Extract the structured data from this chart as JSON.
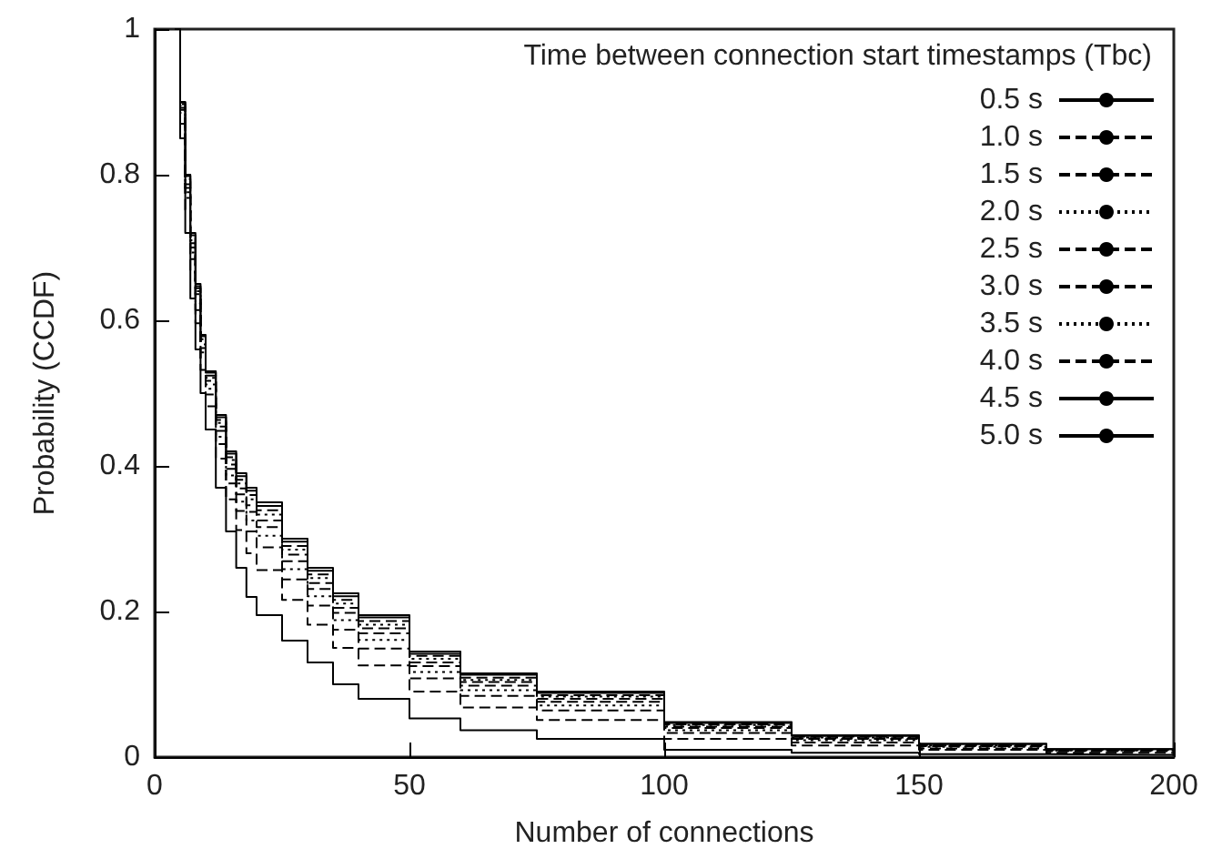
{
  "chart_data": {
    "type": "step",
    "xlabel": "Number of connections",
    "ylabel": "Probability (CCDF)",
    "legend_title": "Time between connection start timestamps (Tbc)",
    "x": [
      4,
      5,
      6,
      7,
      8,
      9,
      10,
      12,
      14,
      16,
      18,
      20,
      25,
      30,
      35,
      40,
      50,
      60,
      75,
      100,
      125,
      150,
      175,
      200
    ],
    "xlim": [
      0,
      200
    ],
    "xticks": [
      0,
      50,
      100,
      150,
      200
    ],
    "ylim": [
      0,
      1
    ],
    "yticks": [
      0,
      0.2,
      0.4,
      0.6,
      0.8,
      1
    ],
    "grid": false,
    "legend": "top right",
    "marker": "none",
    "series": [
      {
        "name": "0.5 s",
        "color": "#000000",
        "line_style": "solid",
        "values": [
          1,
          0.85,
          0.72,
          0.63,
          0.56,
          0.5,
          0.45,
          0.37,
          0.31,
          0.26,
          0.22,
          0.195,
          0.16,
          0.13,
          0.1,
          0.08,
          0.053,
          0.037,
          0.025,
          0.01,
          0.006,
          0.004,
          0.003,
          0.002
        ]
      },
      {
        "name": "1.0 s",
        "color": "#000000",
        "line_style": "dashed",
        "values": [
          1,
          0.87,
          0.752,
          0.666,
          0.596,
          0.532,
          0.482,
          0.41,
          0.354,
          0.312,
          0.28,
          0.257,
          0.216,
          0.182,
          0.15,
          0.126,
          0.09,
          0.068,
          0.051,
          0.025,
          0.016,
          0.01,
          0.006,
          0.004
        ]
      },
      {
        "name": "1.5 s",
        "color": "#000000",
        "line_style": "dashed",
        "values": [
          1,
          0.88,
          0.768,
          0.684,
          0.614,
          0.548,
          0.498,
          0.43,
          0.376,
          0.338,
          0.31,
          0.288,
          0.244,
          0.208,
          0.175,
          0.149,
          0.108,
          0.084,
          0.064,
          0.033,
          0.02,
          0.012,
          0.008,
          0.005
        ]
      },
      {
        "name": "2.0 s",
        "color": "#000000",
        "line_style": "dotted",
        "values": [
          1,
          0.885,
          0.776,
          0.693,
          0.623,
          0.556,
          0.506,
          0.44,
          0.387,
          0.351,
          0.325,
          0.304,
          0.258,
          0.221,
          0.188,
          0.161,
          0.117,
          0.092,
          0.071,
          0.037,
          0.023,
          0.014,
          0.009,
          0.006
        ]
      },
      {
        "name": "2.5 s",
        "color": "#000000",
        "line_style": "dashed",
        "values": [
          1,
          0.889,
          0.782,
          0.7,
          0.63,
          0.562,
          0.512,
          0.448,
          0.396,
          0.361,
          0.337,
          0.316,
          0.269,
          0.231,
          0.198,
          0.17,
          0.125,
          0.098,
          0.076,
          0.04,
          0.025,
          0.015,
          0.009,
          0.006
        ]
      },
      {
        "name": "3.0 s",
        "color": "#000000",
        "line_style": "dashed",
        "values": [
          1,
          0.892,
          0.787,
          0.706,
          0.636,
          0.567,
          0.517,
          0.454,
          0.402,
          0.369,
          0.346,
          0.325,
          0.278,
          0.239,
          0.205,
          0.177,
          0.13,
          0.103,
          0.08,
          0.042,
          0.026,
          0.016,
          0.01,
          0.006
        ]
      },
      {
        "name": "3.5 s",
        "color": "#000000",
        "line_style": "dotted",
        "values": [
          1,
          0.895,
          0.791,
          0.71,
          0.64,
          0.571,
          0.521,
          0.459,
          0.408,
          0.376,
          0.354,
          0.333,
          0.285,
          0.246,
          0.211,
          0.182,
          0.135,
          0.106,
          0.083,
          0.044,
          0.027,
          0.016,
          0.01,
          0.006
        ]
      },
      {
        "name": "4.0 s",
        "color": "#000000",
        "line_style": "dashed",
        "values": [
          1,
          0.897,
          0.794,
          0.714,
          0.644,
          0.574,
          0.524,
          0.463,
          0.412,
          0.381,
          0.36,
          0.339,
          0.29,
          0.251,
          0.216,
          0.187,
          0.139,
          0.109,
          0.085,
          0.045,
          0.028,
          0.017,
          0.01,
          0.007
        ]
      },
      {
        "name": "4.5 s",
        "color": "#000000",
        "line_style": "solid",
        "values": [
          1,
          0.899,
          0.798,
          0.717,
          0.647,
          0.578,
          0.528,
          0.467,
          0.417,
          0.386,
          0.366,
          0.345,
          0.296,
          0.256,
          0.221,
          0.192,
          0.142,
          0.113,
          0.088,
          0.047,
          0.029,
          0.018,
          0.011,
          0.007
        ]
      },
      {
        "name": "5.0 s",
        "color": "#000000",
        "line_style": "solid",
        "values": [
          1,
          0.9,
          0.8,
          0.72,
          0.65,
          0.58,
          0.53,
          0.47,
          0.42,
          0.39,
          0.37,
          0.35,
          0.3,
          0.26,
          0.225,
          0.195,
          0.145,
          0.115,
          0.09,
          0.048,
          0.03,
          0.018,
          0.011,
          0.007
        ]
      }
    ]
  }
}
